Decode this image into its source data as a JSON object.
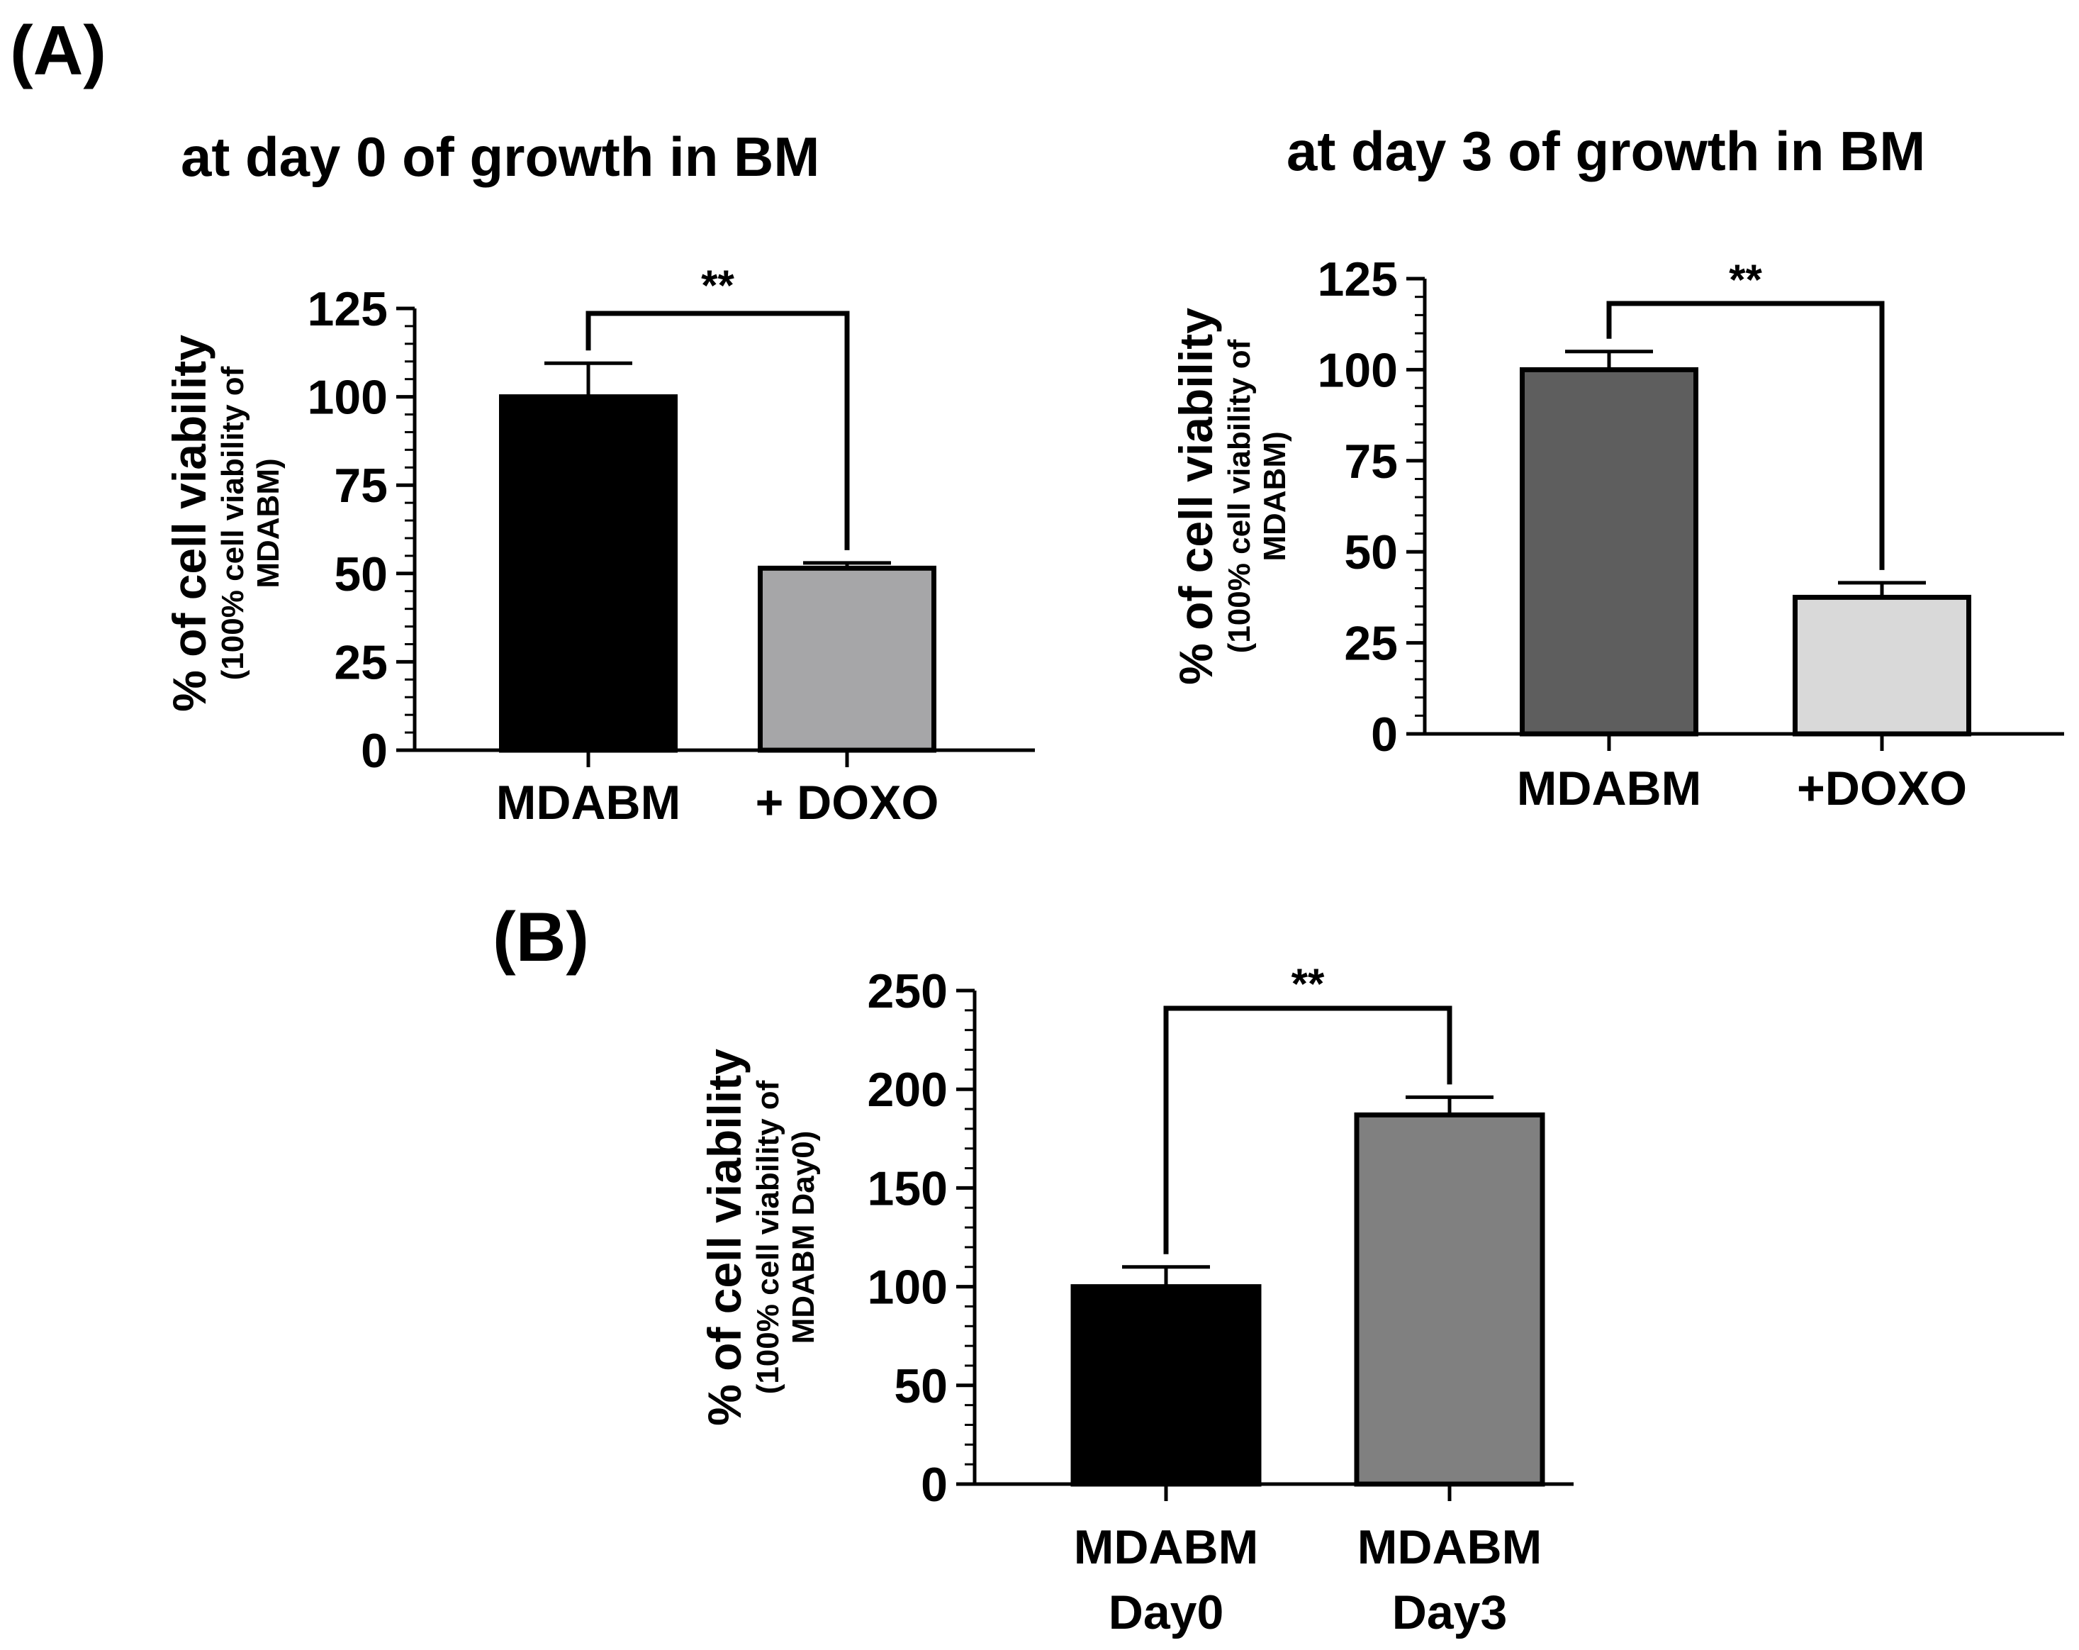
{
  "panels": {
    "a_label": "(A)",
    "b_label": "(B)"
  },
  "chart_data": [
    {
      "type": "bar",
      "title": "at day 0 of growth in BM",
      "ylabel": "% of cell viability",
      "ylabel_sub": [
        "(100% cell viability of",
        "MDABM)"
      ],
      "categories": [
        "MDABM",
        "+ DOXO"
      ],
      "category_lines": [
        [
          "MDABM"
        ],
        [
          "+ DOXO"
        ]
      ],
      "values": [
        100,
        51.5
      ],
      "errors": [
        9.5,
        1.5
      ],
      "bar_colors": [
        "#000000",
        "#a6a6a8"
      ],
      "ylim": [
        0,
        125
      ],
      "yticks": [
        0,
        25,
        50,
        75,
        100,
        125
      ],
      "minor_step": 5,
      "significance": "**"
    },
    {
      "type": "bar",
      "title": "at day 3 of growth in BM",
      "ylabel": "% of cell viability",
      "ylabel_sub": [
        "(100% cell viability of",
        "MDABM)"
      ],
      "categories": [
        "MDABM",
        "+DOXO"
      ],
      "category_lines": [
        [
          "MDABM"
        ],
        [
          "+DOXO"
        ]
      ],
      "values": [
        100,
        37.5
      ],
      "errors": [
        5,
        4
      ],
      "bar_colors": [
        "#5e5e5e",
        "#d9d9d9"
      ],
      "ylim": [
        0,
        125
      ],
      "yticks": [
        0,
        25,
        50,
        75,
        100,
        125
      ],
      "minor_step": 5,
      "significance": "**"
    },
    {
      "type": "bar",
      "title": "",
      "ylabel": "% of cell viability",
      "ylabel_sub": [
        "(100% cell viability of",
        "MDABM Day0)"
      ],
      "categories": [
        "MDABM Day0",
        "MDABM Day3"
      ],
      "category_lines": [
        [
          "MDABM",
          "Day0"
        ],
        [
          "MDABM",
          "Day3"
        ]
      ],
      "values": [
        100,
        187
      ],
      "errors": [
        10,
        9
      ],
      "bar_colors": [
        "#000000",
        "#808080"
      ],
      "ylim": [
        0,
        250
      ],
      "yticks": [
        0,
        50,
        100,
        150,
        200,
        250
      ],
      "minor_step": 10,
      "significance": "**"
    }
  ]
}
